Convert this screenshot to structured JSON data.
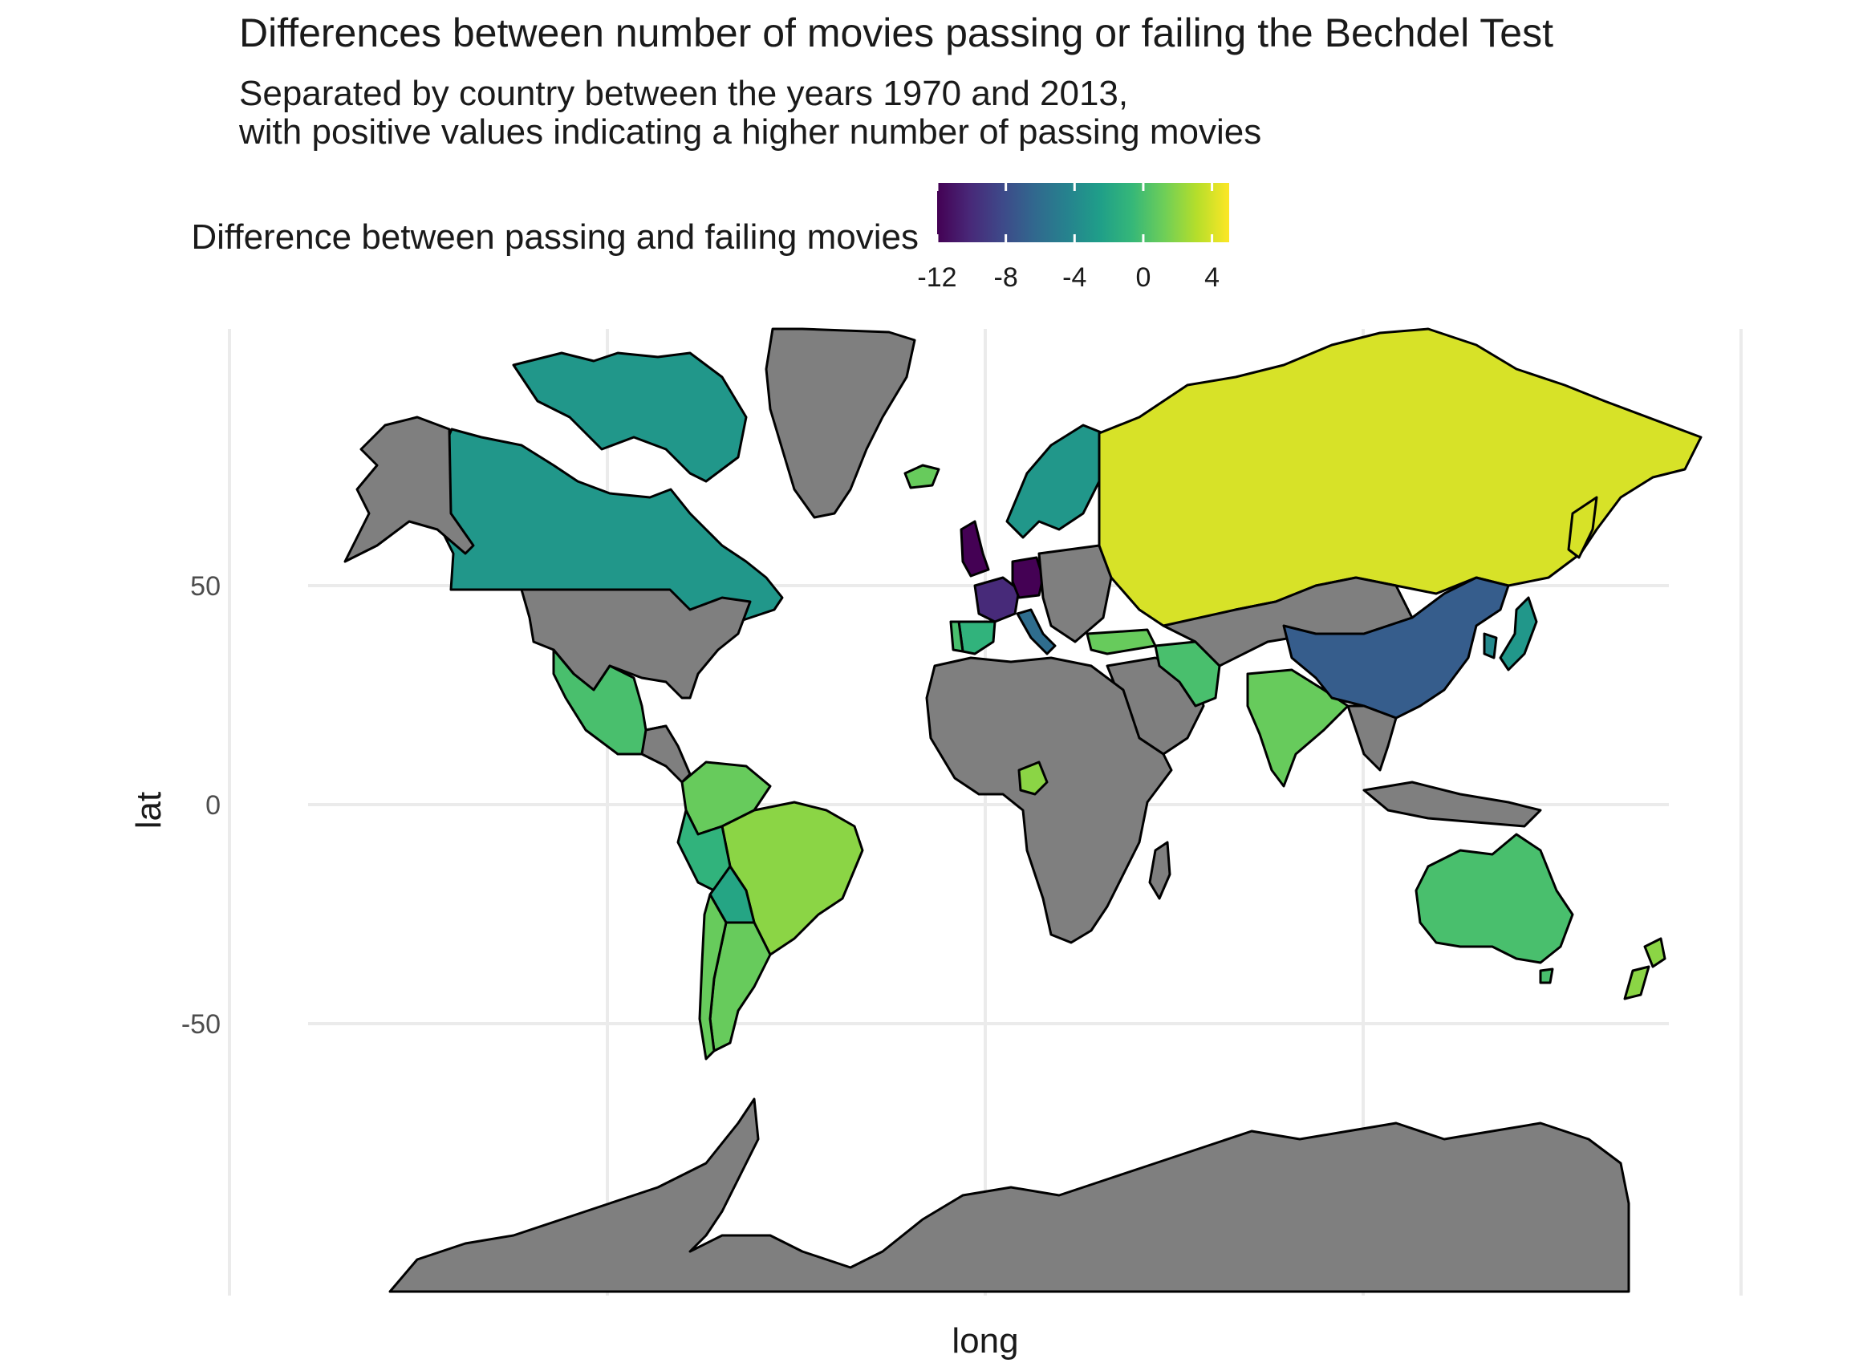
{
  "title": "Differences between number of movies passing or failing the Bechdel Test",
  "subtitle_line1": "Separated by country between the years 1970 and 2013,",
  "subtitle_line2": "with positive values indicating a higher number of passing movies",
  "legend": {
    "title": "Difference between passing and failing movies",
    "range": [
      -12,
      5
    ],
    "ticks": [
      -12,
      -8,
      -4,
      0,
      4
    ],
    "tick_labels": [
      "-12",
      "-8",
      "-4",
      "0",
      "4"
    ]
  },
  "axes": {
    "xlabel": "long",
    "ylabel": "lat",
    "y_ticks": [
      50,
      0,
      -50
    ],
    "y_tick_labels": [
      "50",
      "0",
      "-50"
    ],
    "x_gridlines": [
      -100,
      -50,
      0,
      50,
      100,
      150
    ]
  },
  "colors": {
    "no_data": "#7f7f7f",
    "outline": "#000000",
    "gridline": "#ebebeb",
    "viridis": [
      "#440154",
      "#482878",
      "#3e4989",
      "#31688e",
      "#26828e",
      "#1f9e89",
      "#35b779",
      "#6ece58",
      "#b5de2b",
      "#fde725"
    ]
  },
  "chart_data": {
    "type": "choropleth",
    "region": "world",
    "value_name": "difference between passing and failing movies",
    "countries": [
      {
        "id": "canada",
        "value": -3
      },
      {
        "id": "mexico",
        "value": 0
      },
      {
        "id": "brazil",
        "value": 2
      },
      {
        "id": "argentina",
        "value": 1
      },
      {
        "id": "colombia",
        "value": 1
      },
      {
        "id": "peru",
        "value": -1
      },
      {
        "id": "bolivia",
        "value": -2
      },
      {
        "id": "chile",
        "value": 1
      },
      {
        "id": "uk",
        "value": -12
      },
      {
        "id": "france",
        "value": -10
      },
      {
        "id": "germany",
        "value": -12
      },
      {
        "id": "italy",
        "value": -6
      },
      {
        "id": "spain",
        "value": -1
      },
      {
        "id": "portugal",
        "value": 0
      },
      {
        "id": "nordics",
        "value": -3
      },
      {
        "id": "iceland",
        "value": 1
      },
      {
        "id": "russia",
        "value": 4
      },
      {
        "id": "turkey",
        "value": 1
      },
      {
        "id": "iran",
        "value": 0
      },
      {
        "id": "india",
        "value": 1
      },
      {
        "id": "china",
        "value": -7
      },
      {
        "id": "japan",
        "value": -3
      },
      {
        "id": "south_korea",
        "value": -4
      },
      {
        "id": "australia",
        "value": 0
      },
      {
        "id": "new_zealand",
        "value": 2
      },
      {
        "id": "cameroon",
        "value": 2
      },
      {
        "id": "usa",
        "value": null
      },
      {
        "id": "greenland",
        "value": null
      },
      {
        "id": "africa_other",
        "value": null
      },
      {
        "id": "middle_east_other",
        "value": null
      },
      {
        "id": "central_asia_other",
        "value": null
      },
      {
        "id": "antarctica",
        "value": null
      }
    ]
  }
}
